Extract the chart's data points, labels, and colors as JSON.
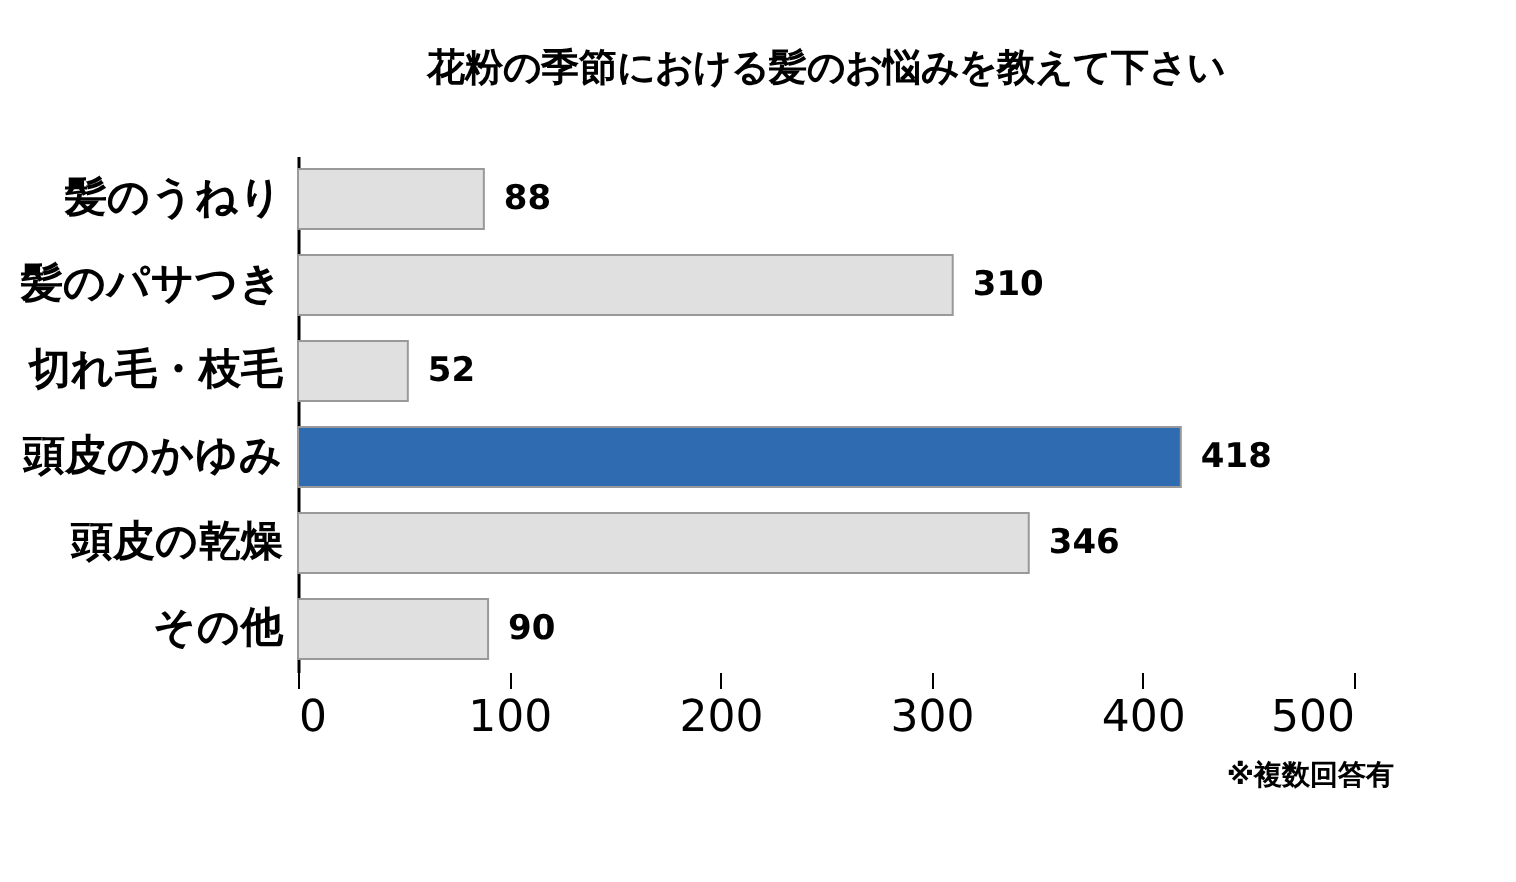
{
  "chart_data": {
    "type": "bar",
    "orientation": "horizontal",
    "title": "花粉の季節における髪のお悩みを教えて下さい",
    "categories": [
      "髪のうねり",
      "髪のパサつき",
      "切れ毛・枝毛",
      "頭皮のかゆみ",
      "頭皮の乾燥",
      "その他"
    ],
    "values": [
      88,
      310,
      52,
      418,
      346,
      90
    ],
    "colors": [
      "#e0e0e0",
      "#e0e0e0",
      "#e0e0e0",
      "#2e6bb0",
      "#e0e0e0",
      "#e0e0e0"
    ],
    "xlim": [
      0,
      500
    ],
    "xticks": [
      0,
      100,
      200,
      300,
      400,
      500
    ],
    "data_labels": true,
    "grid": false,
    "annotations": [
      "※複数回答有"
    ]
  }
}
